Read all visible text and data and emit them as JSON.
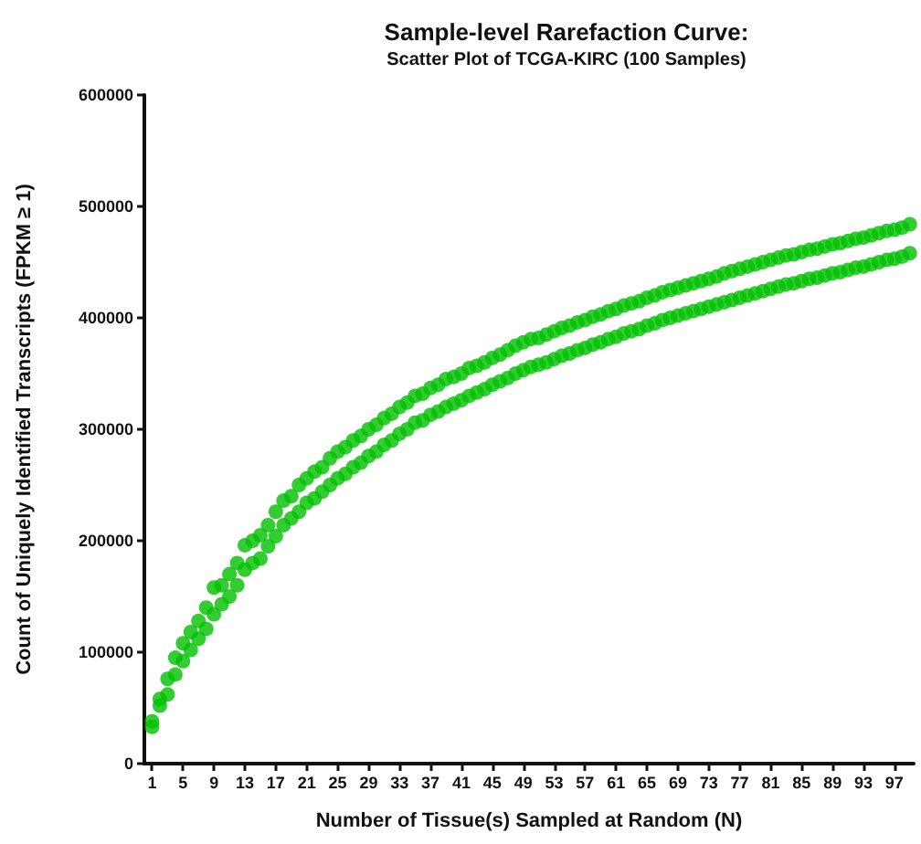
{
  "chart_data": {
    "type": "scatter",
    "title": "Sample-level Rarefaction Curve:",
    "subtitle": "Scatter Plot of TCGA-KIRC (100 Samples)",
    "xlabel": "Number of Tissue(s) Sampled at Random (N)",
    "ylabel": "Count of Uniquely Identified Transcripts (FPKM ≥ 1)",
    "x": [
      1,
      2,
      3,
      4,
      5,
      6,
      7,
      8,
      9,
      10,
      11,
      12,
      13,
      14,
      15,
      16,
      17,
      18,
      19,
      20,
      21,
      22,
      23,
      24,
      25,
      26,
      27,
      28,
      29,
      30,
      31,
      32,
      33,
      34,
      35,
      36,
      37,
      38,
      39,
      40,
      41,
      42,
      43,
      44,
      45,
      46,
      47,
      48,
      49,
      50,
      51,
      52,
      53,
      54,
      55,
      56,
      57,
      58,
      59,
      60,
      61,
      62,
      63,
      64,
      65,
      66,
      67,
      68,
      69,
      70,
      71,
      72,
      73,
      74,
      75,
      76,
      77,
      78,
      79,
      80,
      81,
      82,
      83,
      84,
      85,
      86,
      87,
      88,
      89,
      90,
      91,
      92,
      93,
      94,
      95,
      96,
      97,
      98,
      99
    ],
    "series": [
      {
        "color": "#00c000",
        "values": [
          38000,
          58000,
          76000,
          95000,
          108000,
          118000,
          128000,
          140000,
          158000,
          160000,
          170000,
          180000,
          196000,
          200000,
          205000,
          214000,
          226000,
          236000,
          240000,
          250000,
          256000,
          262000,
          266000,
          274000,
          280000,
          284000,
          290000,
          294000,
          300000,
          304000,
          310000,
          314000,
          320000,
          324000,
          330000,
          332000,
          337000,
          340000,
          345000,
          347000,
          350000,
          355000,
          357000,
          360000,
          364000,
          367000,
          371000,
          375000,
          378000,
          381000,
          382000,
          385000,
          388000,
          391000,
          393000,
          396000,
          398000,
          401000,
          403000,
          406000,
          408000,
          411000,
          413000,
          415000,
          418000,
          420000,
          423000,
          425000,
          427000,
          429000,
          431000,
          433000,
          435000,
          437000,
          440000,
          442000,
          444000,
          446000,
          448000,
          450000,
          452000,
          454000,
          456000,
          457000,
          459000,
          461000,
          462000,
          464000,
          466000,
          467000,
          469000,
          471000,
          472000,
          474000,
          476000,
          478000,
          479000,
          481000,
          484000
        ]
      },
      {
        "color": "#00c000",
        "values": [
          33000,
          52000,
          62000,
          80000,
          92000,
          102000,
          112000,
          121000,
          134000,
          143000,
          150000,
          160000,
          174000,
          180000,
          184000,
          195000,
          204000,
          214000,
          220000,
          226000,
          234000,
          238000,
          244000,
          250000,
          256000,
          260000,
          266000,
          270000,
          276000,
          280000,
          286000,
          290000,
          296000,
          300000,
          306000,
          308000,
          313000,
          316000,
          320000,
          323000,
          326000,
          330000,
          333000,
          336000,
          340000,
          343000,
          346000,
          350000,
          353000,
          356000,
          358000,
          360000,
          363000,
          366000,
          368000,
          371000,
          373000,
          376000,
          378000,
          381000,
          383000,
          386000,
          388000,
          390000,
          393000,
          395000,
          398000,
          400000,
          402000,
          404000,
          406000,
          408000,
          410000,
          412000,
          414000,
          416000,
          418000,
          420000,
          422000,
          424000,
          426000,
          428000,
          430000,
          431000,
          433000,
          435000,
          436000,
          438000,
          440000,
          441000,
          443000,
          445000,
          446000,
          448000,
          450000,
          452000,
          453000,
          455000,
          458000
        ]
      }
    ],
    "xlim": [
      0,
      99.5
    ],
    "xticks": [
      1,
      5,
      9,
      13,
      17,
      21,
      25,
      29,
      33,
      37,
      41,
      45,
      49,
      53,
      57,
      61,
      65,
      69,
      73,
      77,
      81,
      85,
      89,
      93,
      97
    ],
    "ylim": [
      0,
      600000
    ],
    "yticks": [
      0,
      100000,
      200000,
      300000,
      400000,
      500000,
      600000
    ],
    "grid": false,
    "marker": "circle"
  }
}
